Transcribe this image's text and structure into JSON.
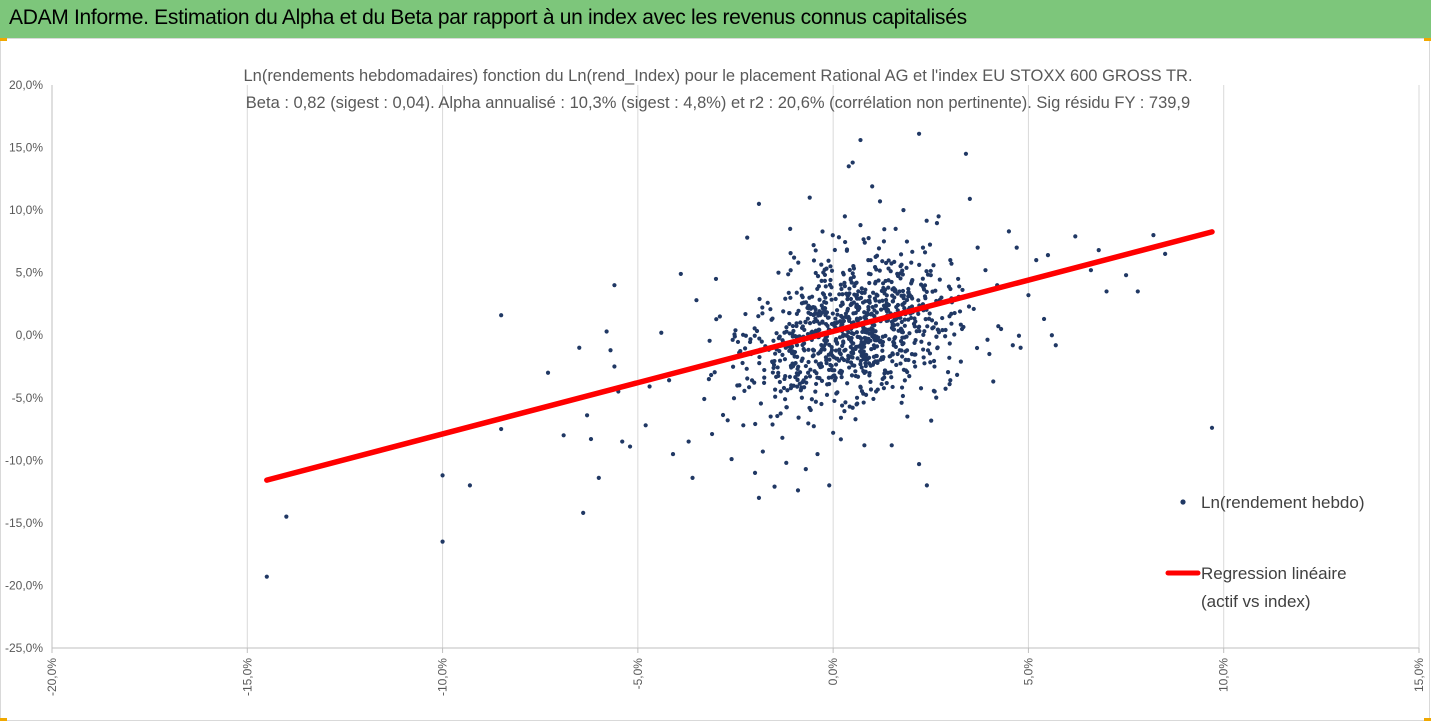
{
  "banner": {
    "title": "ADAM Informe. Estimation du Alpha et du Beta par rapport à un index avec les revenus connus capitalisés"
  },
  "colors": {
    "banner": "#7dc67b",
    "points": "#203864",
    "regression": "#ff0000",
    "grid": "#d9d9d9",
    "text": "#595959",
    "corner_marks": "#f0a800"
  },
  "chart_data": {
    "type": "scatter",
    "title": "Ln(rendements hebdomadaires) fonction du Ln(rend_Index) pour le placement Rational AG et l'index EU STOXX 600 GROSS TR.",
    "subtitle": "Beta : 0,82 (sigest : 0,04). Alpha annualisé : 10,3% (sigest : 4,8%) et r2 : 20,6% (corrélation non pertinente). Sig résidu FY : 739,9",
    "xlim": [
      -0.2,
      0.15
    ],
    "ylim": [
      -0.25,
      0.2
    ],
    "x_ticks": [
      "-20,0%",
      "-15,0%",
      "-10,0%",
      "-5,0%",
      "0,0%",
      "5,0%",
      "10,0%",
      "15,0%"
    ],
    "x_tick_values": [
      -0.2,
      -0.15,
      -0.1,
      -0.05,
      0.0,
      0.05,
      0.1,
      0.15
    ],
    "y_ticks": [
      "20,0%",
      "15,0%",
      "10,0%",
      "5,0%",
      "0,0%",
      "-5,0%",
      "-10,0%",
      "-15,0%",
      "-20,0%",
      "-25,0%"
    ],
    "y_tick_values": [
      0.2,
      0.15,
      0.1,
      0.05,
      0.0,
      -0.05,
      -0.1,
      -0.15,
      -0.2,
      -0.25
    ],
    "grid": "vertical",
    "legend_position": "right",
    "series": [
      {
        "name": "Ln(rendement hebdo)",
        "kind": "scatter",
        "note_points": "representative visible outliers; dense cloud centered near (0.5%, 0.5%)",
        "points": [
          [
            -0.145,
            -0.193
          ],
          [
            -0.14,
            -0.145
          ],
          [
            -0.1,
            -0.165
          ],
          [
            -0.1,
            -0.112
          ],
          [
            -0.093,
            -0.12
          ],
          [
            -0.085,
            0.016
          ],
          [
            -0.085,
            -0.075
          ],
          [
            -0.073,
            -0.03
          ],
          [
            -0.074,
            -0.058
          ],
          [
            -0.069,
            -0.08
          ],
          [
            -0.065,
            -0.01
          ],
          [
            -0.063,
            -0.064
          ],
          [
            -0.064,
            -0.142
          ],
          [
            -0.062,
            -0.083
          ],
          [
            -0.06,
            -0.114
          ],
          [
            -0.058,
            0.003
          ],
          [
            -0.057,
            -0.012
          ],
          [
            -0.056,
            0.04
          ],
          [
            -0.056,
            -0.025
          ],
          [
            -0.055,
            -0.045
          ],
          [
            -0.054,
            -0.085
          ],
          [
            -0.052,
            -0.089
          ],
          [
            -0.048,
            -0.072
          ],
          [
            -0.047,
            -0.041
          ],
          [
            -0.044,
            0.002
          ],
          [
            -0.042,
            -0.036
          ],
          [
            -0.041,
            -0.095
          ],
          [
            -0.039,
            0.049
          ],
          [
            -0.037,
            -0.085
          ],
          [
            -0.036,
            -0.114
          ],
          [
            -0.035,
            0.028
          ],
          [
            -0.033,
            -0.051
          ],
          [
            -0.031,
            -0.079
          ],
          [
            -0.03,
            0.045
          ],
          [
            -0.029,
            0.015
          ],
          [
            -0.027,
            -0.068
          ],
          [
            -0.026,
            -0.099
          ],
          [
            -0.024,
            -0.04
          ],
          [
            -0.023,
            -0.072
          ],
          [
            -0.022,
            0.078
          ],
          [
            -0.021,
            -0.015
          ],
          [
            -0.02,
            -0.11
          ],
          [
            -0.019,
            -0.13
          ],
          [
            -0.019,
            0.105
          ],
          [
            -0.018,
            -0.093
          ],
          [
            -0.016,
            -0.065
          ],
          [
            -0.015,
            -0.121
          ],
          [
            -0.014,
            0.05
          ],
          [
            -0.013,
            -0.082
          ],
          [
            -0.012,
            -0.102
          ],
          [
            -0.011,
            0.085
          ],
          [
            -0.01,
            0.062
          ],
          [
            -0.009,
            -0.124
          ],
          [
            -0.008,
            -0.05
          ],
          [
            -0.007,
            -0.107
          ],
          [
            -0.006,
            0.11
          ],
          [
            -0.005,
            0.072
          ],
          [
            -0.004,
            -0.095
          ],
          [
            -0.003,
            -0.055
          ],
          [
            -0.002,
            0.03
          ],
          [
            -0.001,
            -0.12
          ],
          [
            0.0,
            -0.078
          ],
          [
            0.001,
            0.02
          ],
          [
            0.002,
            -0.066
          ],
          [
            0.003,
            0.095
          ],
          [
            0.004,
            0.135
          ],
          [
            0.005,
            0.138
          ],
          [
            0.005,
            -0.058
          ],
          [
            0.006,
            0.042
          ],
          [
            0.007,
            0.088
          ],
          [
            0.007,
            0.156
          ],
          [
            0.008,
            -0.088
          ],
          [
            0.009,
            0.06
          ],
          [
            0.01,
            0.119
          ],
          [
            0.011,
            -0.045
          ],
          [
            0.012,
            0.107
          ],
          [
            0.013,
            0.075
          ],
          [
            0.014,
            -0.03
          ],
          [
            0.015,
            -0.088
          ],
          [
            0.016,
            0.085
          ],
          [
            0.017,
            0.035
          ],
          [
            0.018,
            0.1
          ],
          [
            0.019,
            -0.065
          ],
          [
            0.02,
            0.058
          ],
          [
            0.021,
            -0.025
          ],
          [
            0.022,
            0.161
          ],
          [
            0.022,
            -0.103
          ],
          [
            0.023,
            0.07
          ],
          [
            0.024,
            -0.12
          ],
          [
            0.025,
            0.048
          ],
          [
            0.026,
            -0.045
          ],
          [
            0.027,
            0.095
          ],
          [
            0.028,
            0.026
          ],
          [
            0.03,
            0.06
          ],
          [
            0.03,
            -0.036
          ],
          [
            0.032,
            0.045
          ],
          [
            0.033,
            0.005
          ],
          [
            0.034,
            0.145
          ],
          [
            0.035,
            0.109
          ],
          [
            0.036,
            0.021
          ],
          [
            0.037,
            0.07
          ],
          [
            0.039,
            0.052
          ],
          [
            0.04,
            -0.015
          ],
          [
            0.041,
            -0.037
          ],
          [
            0.042,
            0.04
          ],
          [
            0.043,
            0.005
          ],
          [
            0.045,
            0.083
          ],
          [
            0.046,
            -0.008
          ],
          [
            0.047,
            0.07
          ],
          [
            0.048,
            -0.01
          ],
          [
            0.05,
            0.032
          ],
          [
            0.052,
            0.06
          ],
          [
            0.054,
            0.013
          ],
          [
            0.055,
            0.064
          ],
          [
            0.056,
            0.0
          ],
          [
            0.057,
            -0.008
          ],
          [
            0.062,
            0.079
          ],
          [
            0.066,
            0.052
          ],
          [
            0.068,
            0.068
          ],
          [
            0.07,
            0.035
          ],
          [
            0.075,
            0.048
          ],
          [
            0.078,
            0.035
          ],
          [
            0.082,
            0.08
          ],
          [
            0.085,
            0.065
          ],
          [
            0.097,
            -0.074
          ]
        ]
      },
      {
        "name": "Regression linéaire (actif vs index)",
        "kind": "line",
        "x": [
          -0.145,
          0.097
        ],
        "y": [
          -0.1158,
          0.0826
        ]
      }
    ],
    "legend": [
      {
        "line1": "Ln(rendement hebdo)"
      },
      {
        "line1": "Regression linéaire",
        "line2": "(actif vs index)"
      }
    ]
  }
}
